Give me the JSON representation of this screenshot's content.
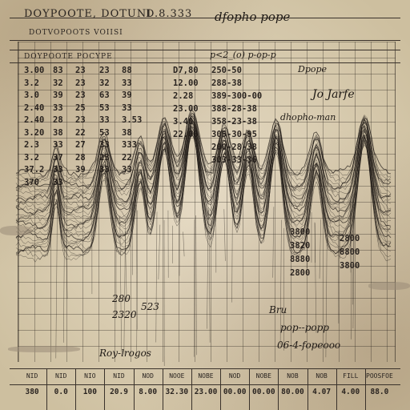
{
  "header": {
    "title": "DOYPOOTE, DOTUNI",
    "code": "D.8.333",
    "subtitle": "DOTVOPOOTS VOIISI",
    "left_column_head": "DOYPOOTE POCYPE",
    "sig_top": "dfopho pope",
    "hand_top": "p<2_(o) p-op-p"
  },
  "left_table": {
    "rows": [
      [
        "3.00",
        "83",
        "23",
        "23",
        "88"
      ],
      [
        "3.2",
        "32",
        "23",
        "32",
        "33"
      ],
      [
        "3.0",
        "39",
        "23",
        "63",
        "39"
      ],
      [
        "2.40",
        "33",
        "25",
        "53",
        "33"
      ],
      [
        "2.40",
        "28",
        "23",
        "33",
        "3.53"
      ],
      [
        "3.20",
        "38",
        "22",
        "53",
        "38"
      ],
      [
        "2.3",
        "33",
        "27",
        "33",
        "333"
      ],
      [
        "3.2",
        "37",
        "28",
        "23",
        "22"
      ],
      [
        "37.2",
        "33",
        "39",
        "33",
        "33"
      ],
      [
        "370",
        "33",
        "",
        " ",
        ""
      ]
    ]
  },
  "mid_table": {
    "rows": [
      [
        "D7,80",
        "250-50"
      ],
      [
        "12.00",
        "288-38"
      ],
      [
        "2.28",
        "389-300-00"
      ],
      [
        "23.00",
        "388-28-38"
      ],
      [
        "3.40",
        "358-23-38"
      ],
      [
        "22.00",
        "305-30-95"
      ],
      [
        "",
        "200-28-38"
      ],
      [
        "",
        "303-33-36"
      ]
    ]
  },
  "right_notes": [
    "Dpope",
    "Jo Jarfe",
    "dhopho-man"
  ],
  "lower_right_values": [
    "3800",
    "2800",
    "3820",
    "8800",
    "8880",
    "3800",
    "2800"
  ],
  "lower_left_values": [
    "280",
    "523",
    "2320"
  ],
  "hand_notes": [
    "Bru",
    "pop--popp",
    "06-4-fopeooo",
    "Roy-lrogos"
  ],
  "footer": {
    "headers": [
      "NID",
      "NID",
      "NIO",
      "NID",
      "NOD",
      "NOOE",
      "NOBE",
      "NOD",
      "NOBE",
      "NOB",
      "NOB",
      "FILL",
      "POOSFOE"
    ],
    "values": [
      "380",
      "0.0",
      "100",
      "20.9",
      "8.00",
      "32.30",
      "23.00",
      "00.00",
      "00.00",
      "80.00",
      "4.07",
      "4.00",
      "88.0"
    ]
  },
  "colors": {
    "paper": "#e3d7bf",
    "ink": "#2a2420",
    "grid": "#3a322b"
  }
}
